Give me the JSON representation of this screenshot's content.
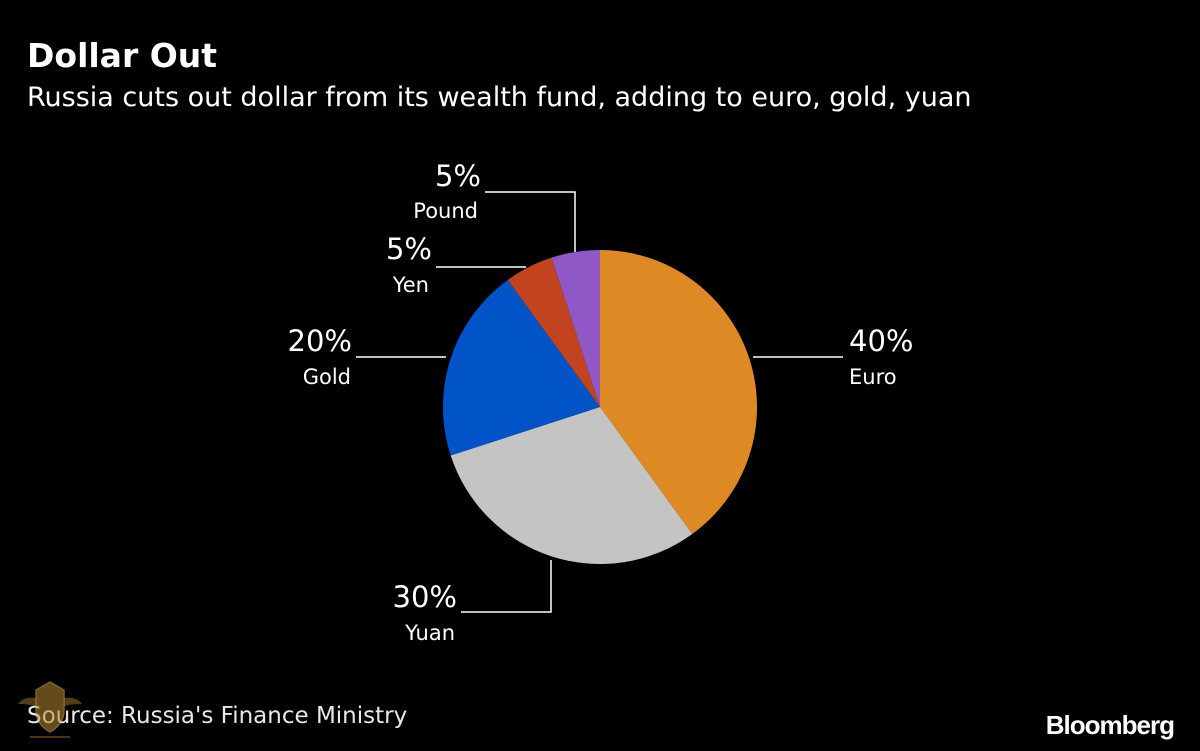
{
  "header": {
    "title": "Dollar Out",
    "subtitle": "Russia cuts out dollar from its wealth fund, adding to euro, gold, yuan"
  },
  "chart_data": {
    "type": "pie",
    "categories": [
      "Euro",
      "Yuan",
      "Gold",
      "Yen",
      "Pound"
    ],
    "values": [
      40,
      30,
      20,
      5,
      5
    ],
    "value_labels": [
      "40%",
      "30%",
      "20%",
      "5%",
      "5%"
    ],
    "colors": [
      "#dd8a25",
      "#c4c4c4",
      "#0153c8",
      "#c1441f",
      "#9058c6"
    ],
    "start_angle": "12 o'clock",
    "direction": "clockwise",
    "legend": "none"
  },
  "footer": {
    "source": "Source: Russia's Finance Ministry",
    "brand": "Bloomberg"
  }
}
